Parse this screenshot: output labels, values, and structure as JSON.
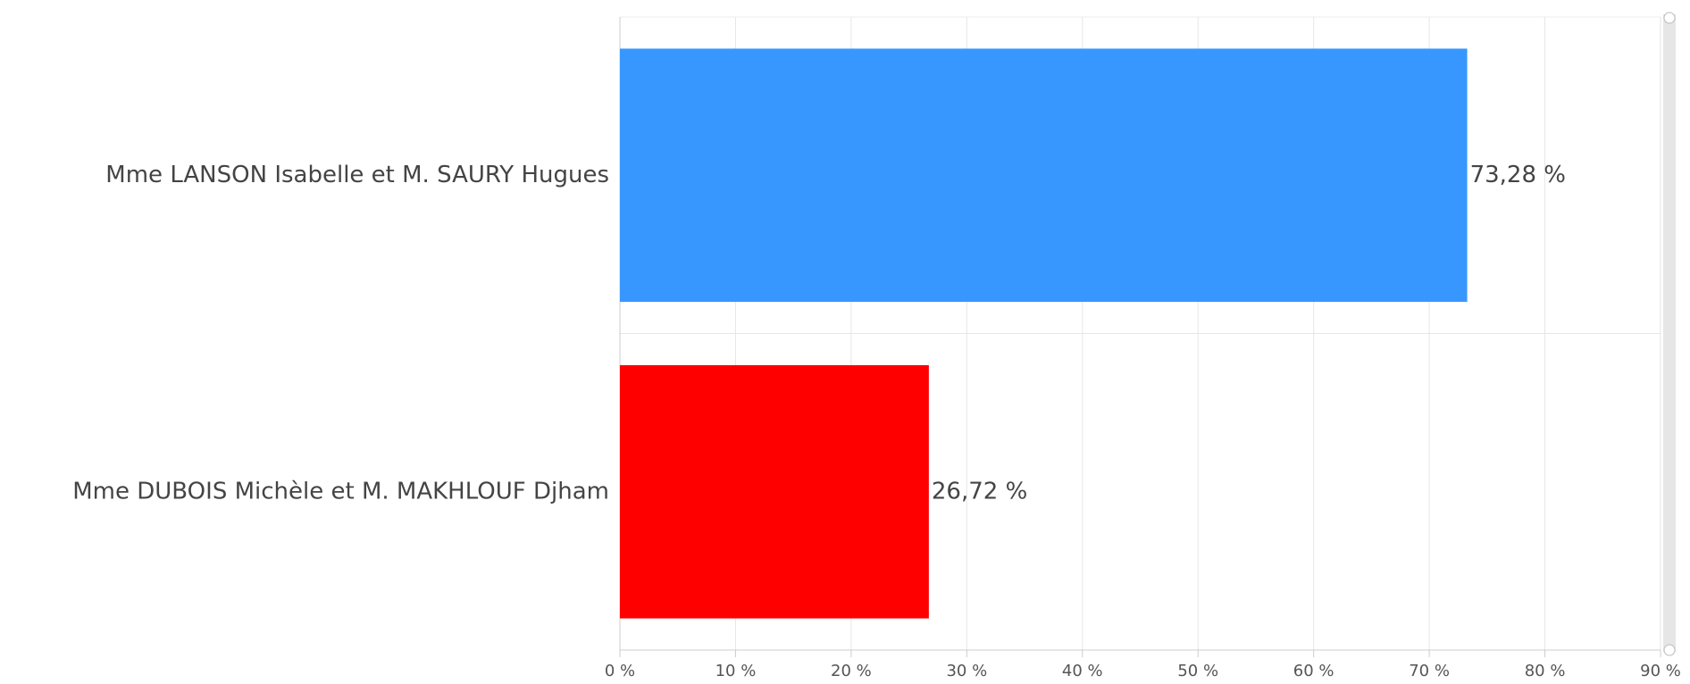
{
  "chart_data": {
    "type": "bar",
    "orientation": "horizontal",
    "categories": [
      "Mme LANSON Isabelle et M. SAURY Hugues",
      "Mme DUBOIS Michèle et M. MAKHLOUF Djham"
    ],
    "values": [
      73.28,
      26.72
    ],
    "value_labels": [
      "73,28 %",
      "26,72 %"
    ],
    "colors": [
      "#3797ff",
      "#ff0000"
    ],
    "xlim": [
      0,
      90
    ],
    "xticks": [
      {
        "value": 0,
        "label": "0 %"
      },
      {
        "value": 10,
        "label": "10 %"
      },
      {
        "value": 20,
        "label": "20 %"
      },
      {
        "value": 30,
        "label": "30 %"
      },
      {
        "value": 40,
        "label": "40 %"
      },
      {
        "value": 50,
        "label": "50 %"
      },
      {
        "value": 60,
        "label": "60 %"
      },
      {
        "value": 70,
        "label": "70 %"
      },
      {
        "value": 80,
        "label": "80 %"
      },
      {
        "value": 90,
        "label": "90 %"
      }
    ],
    "grid": true
  }
}
